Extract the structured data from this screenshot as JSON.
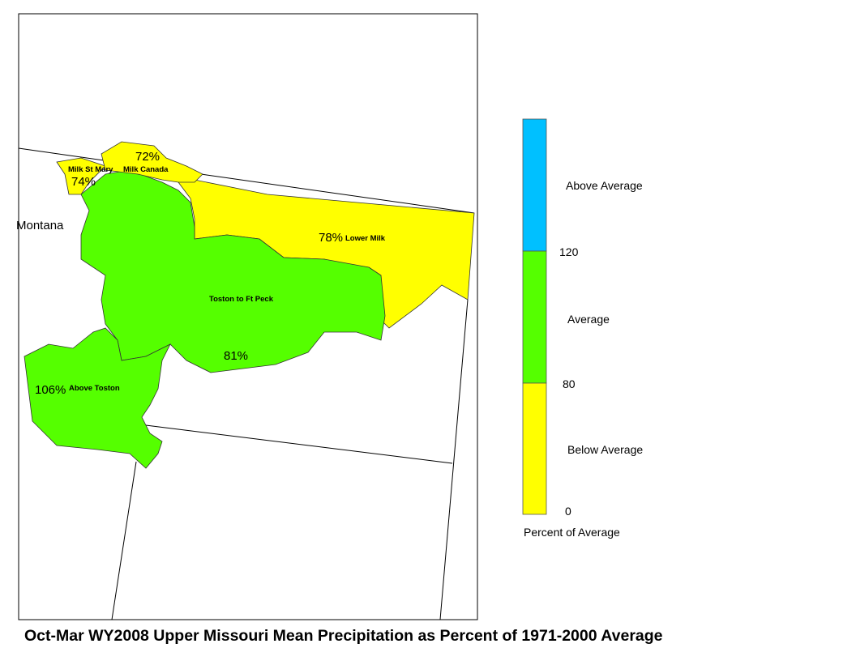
{
  "title": "Oct-Mar WY2008 Upper Missouri Mean Precipitation as Percent of 1971-2000 Average",
  "map": {
    "state_label": "Montana",
    "basins": [
      {
        "name": "Milk St Mary",
        "label": "74%"
      },
      {
        "name": "Milk Canada",
        "label": "72%"
      },
      {
        "name": "Lower Milk",
        "label": "78%"
      },
      {
        "name": "Toston to Ft Peck",
        "label": "81%"
      },
      {
        "name": "Above Toston",
        "label": "106%"
      }
    ]
  },
  "legend": {
    "title": "Percent of Average",
    "classes": [
      "Above Average",
      "Average",
      "Below Average"
    ],
    "breaks": [
      "120",
      "80",
      "0"
    ]
  }
}
